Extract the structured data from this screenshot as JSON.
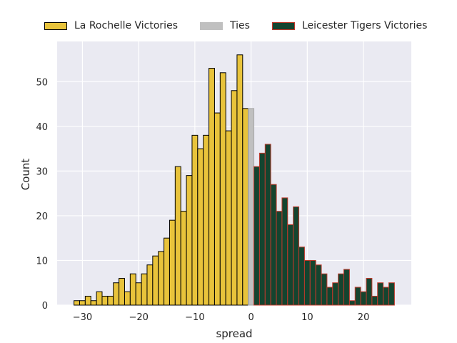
{
  "chart_data": {
    "type": "bar",
    "title": "",
    "xlabel": "spread",
    "ylabel": "Count",
    "xlim": [
      -34.5,
      28.5
    ],
    "ylim": [
      0,
      59
    ],
    "xticks": [
      -30,
      -20,
      -10,
      0,
      10,
      20
    ],
    "xtick_labels": [
      "−30",
      "−20",
      "−10",
      "0",
      "10",
      "20"
    ],
    "yticks": [
      0,
      10,
      20,
      30,
      40,
      50
    ],
    "ytick_labels": [
      "0",
      "10",
      "20",
      "30",
      "40",
      "50"
    ],
    "grid": true,
    "legend_position": "top",
    "background_color": "#eaeaf2",
    "series": [
      {
        "name": "La Rochelle Victories",
        "color": "#e8c33b",
        "edge_color": "#000000",
        "x": [
          -31,
          -30,
          -29,
          -28,
          -27,
          -26,
          -25,
          -24,
          -23,
          -22,
          -21,
          -20,
          -19,
          -18,
          -17,
          -16,
          -15,
          -14,
          -13,
          -12,
          -11,
          -10,
          -9,
          -8,
          -7,
          -6,
          -5,
          -4,
          -3,
          -2,
          -1
        ],
        "values": [
          1,
          1,
          2,
          1,
          3,
          2,
          2,
          5,
          6,
          3,
          7,
          5,
          7,
          9,
          11,
          12,
          15,
          19,
          31,
          21,
          29,
          38,
          35,
          38,
          53,
          43,
          52,
          39,
          48,
          56,
          44
        ]
      },
      {
        "name": "Ties",
        "color": "#c0c0c0",
        "edge_color": "#a8a8a8",
        "x": [
          0
        ],
        "values": [
          44
        ]
      },
      {
        "name": "Leicester Tigers Victories",
        "color": "#14442f",
        "edge_color": "#c0392b",
        "x": [
          1,
          2,
          3,
          4,
          5,
          6,
          7,
          8,
          9,
          10,
          11,
          12,
          13,
          14,
          15,
          16,
          17,
          18,
          19,
          20,
          21,
          22,
          23,
          24,
          25
        ],
        "values": [
          31,
          34,
          36,
          27,
          21,
          24,
          18,
          22,
          13,
          10,
          10,
          9,
          7,
          4,
          5,
          7,
          8,
          1,
          4,
          3,
          6,
          2,
          5,
          4,
          5
        ]
      }
    ]
  }
}
